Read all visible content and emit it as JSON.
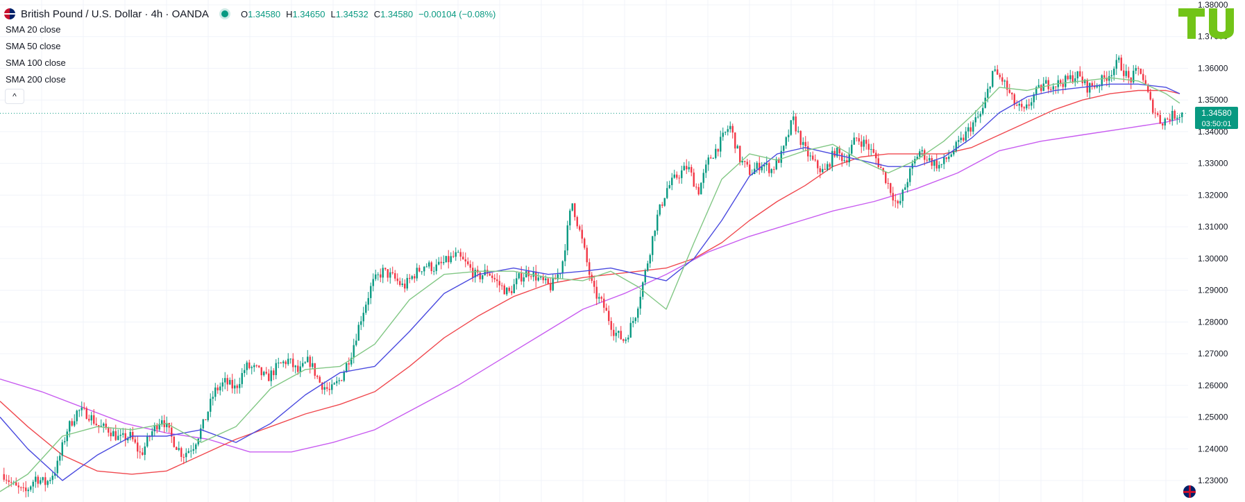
{
  "header": {
    "title": "British Pound / U.S. Dollar · 4h · OANDA",
    "ohlc": {
      "o_label": "O",
      "o": "1.34580",
      "h_label": "H",
      "h": "1.34650",
      "l_label": "L",
      "l": "1.34532",
      "c_label": "C",
      "c": "1.34580",
      "change": "−0.00104 (−0.08%)"
    }
  },
  "indicators": [
    {
      "name": "SMA",
      "params": "20 close"
    },
    {
      "name": "SMA",
      "params": "50 close"
    },
    {
      "name": "SMA",
      "params": "100 close"
    },
    {
      "name": "SMA",
      "params": "200 close"
    }
  ],
  "collapse_symbol": "^",
  "price_tag": {
    "price": "1.34580",
    "countdown": "03:50:01"
  },
  "logo_text": "TU",
  "colors": {
    "up": "#089981",
    "down": "#f23645",
    "sma20": "#81c784",
    "sma50": "#4a4adf",
    "sma100": "#f0484e",
    "sma200": "#c85cf0",
    "logo": "#72c418",
    "grid": "#f0f3fa"
  },
  "chart_data": {
    "type": "candlestick",
    "symbol": "GBPUSD",
    "timeframe": "4h",
    "y_axis": {
      "ticks": [
        "1.38000",
        "1.37000",
        "1.36000",
        "1.35000",
        "1.34000",
        "1.33000",
        "1.32000",
        "1.31000",
        "1.30000",
        "1.29000",
        "1.28000",
        "1.27000",
        "1.26000",
        "1.25000",
        "1.24000",
        "1.23000"
      ],
      "range": [
        1.2265,
        1.3808
      ]
    },
    "price_line": 1.3458,
    "price_path": [
      1.232,
      1.228,
      1.226,
      1.231,
      1.229,
      1.234,
      1.246,
      1.252,
      1.251,
      1.247,
      1.246,
      1.243,
      1.244,
      1.238,
      1.245,
      1.25,
      1.243,
      1.238,
      1.241,
      1.248,
      1.258,
      1.261,
      1.259,
      1.266,
      1.265,
      1.262,
      1.266,
      1.268,
      1.264,
      1.268,
      1.261,
      1.258,
      1.262,
      1.27,
      1.282,
      1.292,
      1.296,
      1.294,
      1.291,
      1.295,
      1.298,
      1.297,
      1.299,
      1.301,
      1.298,
      1.294,
      1.296,
      1.292,
      1.289,
      1.294,
      1.296,
      1.293,
      1.291,
      1.297,
      1.318,
      1.305,
      1.29,
      1.285,
      1.277,
      1.274,
      1.282,
      1.296,
      1.312,
      1.322,
      1.326,
      1.329,
      1.321,
      1.331,
      1.336,
      1.342,
      1.331,
      1.327,
      1.33,
      1.328,
      1.333,
      1.344,
      1.335,
      1.33,
      1.327,
      1.334,
      1.331,
      1.338,
      1.336,
      1.331,
      1.324,
      1.316,
      1.326,
      1.334,
      1.331,
      1.329,
      1.333,
      1.337,
      1.342,
      1.346,
      1.359,
      1.356,
      1.349,
      1.346,
      1.352,
      1.355,
      1.355,
      1.356,
      1.358,
      1.354,
      1.355,
      1.358,
      1.362,
      1.356,
      1.36,
      1.349,
      1.343,
      1.345,
      1.3458
    ],
    "sma20": [
      [
        0,
        1.2265
      ],
      [
        40,
        1.232
      ],
      [
        90,
        1.244
      ],
      [
        140,
        1.247
      ],
      [
        190,
        1.246
      ],
      [
        240,
        1.248
      ],
      [
        290,
        1.242
      ],
      [
        340,
        1.247
      ],
      [
        390,
        1.259
      ],
      [
        440,
        1.265
      ],
      [
        490,
        1.266
      ],
      [
        540,
        1.273
      ],
      [
        590,
        1.287
      ],
      [
        640,
        1.295
      ],
      [
        690,
        1.296
      ],
      [
        740,
        1.296
      ],
      [
        790,
        1.294
      ],
      [
        840,
        1.293
      ],
      [
        880,
        1.296
      ],
      [
        920,
        1.291
      ],
      [
        960,
        1.284
      ],
      [
        1000,
        1.305
      ],
      [
        1040,
        1.325
      ],
      [
        1080,
        1.333
      ],
      [
        1120,
        1.331
      ],
      [
        1160,
        1.334
      ],
      [
        1200,
        1.336
      ],
      [
        1240,
        1.331
      ],
      [
        1280,
        1.327
      ],
      [
        1320,
        1.331
      ],
      [
        1360,
        1.337
      ],
      [
        1400,
        1.345
      ],
      [
        1440,
        1.354
      ],
      [
        1480,
        1.353
      ],
      [
        1520,
        1.355
      ],
      [
        1560,
        1.356
      ],
      [
        1600,
        1.357
      ],
      [
        1640,
        1.356
      ],
      [
        1680,
        1.352
      ],
      [
        1700,
        1.349
      ]
    ],
    "sma50": [
      [
        0,
        1.25
      ],
      [
        40,
        1.24
      ],
      [
        90,
        1.23
      ],
      [
        140,
        1.238
      ],
      [
        190,
        1.244
      ],
      [
        240,
        1.244
      ],
      [
        290,
        1.246
      ],
      [
        340,
        1.242
      ],
      [
        390,
        1.248
      ],
      [
        440,
        1.257
      ],
      [
        490,
        1.264
      ],
      [
        540,
        1.266
      ],
      [
        590,
        1.277
      ],
      [
        640,
        1.289
      ],
      [
        690,
        1.295
      ],
      [
        740,
        1.297
      ],
      [
        790,
        1.295
      ],
      [
        840,
        1.296
      ],
      [
        880,
        1.297
      ],
      [
        920,
        1.295
      ],
      [
        960,
        1.293
      ],
      [
        1000,
        1.3
      ],
      [
        1040,
        1.312
      ],
      [
        1080,
        1.326
      ],
      [
        1120,
        1.333
      ],
      [
        1160,
        1.335
      ],
      [
        1200,
        1.333
      ],
      [
        1240,
        1.331
      ],
      [
        1280,
        1.329
      ],
      [
        1320,
        1.329
      ],
      [
        1360,
        1.332
      ],
      [
        1400,
        1.338
      ],
      [
        1440,
        1.346
      ],
      [
        1480,
        1.351
      ],
      [
        1520,
        1.353
      ],
      [
        1560,
        1.354
      ],
      [
        1600,
        1.355
      ],
      [
        1640,
        1.355
      ],
      [
        1680,
        1.354
      ],
      [
        1700,
        1.352
      ]
    ],
    "sma100": [
      [
        0,
        1.255
      ],
      [
        40,
        1.247
      ],
      [
        90,
        1.238
      ],
      [
        140,
        1.233
      ],
      [
        190,
        1.232
      ],
      [
        240,
        1.233
      ],
      [
        290,
        1.238
      ],
      [
        340,
        1.243
      ],
      [
        390,
        1.247
      ],
      [
        440,
        1.251
      ],
      [
        490,
        1.254
      ],
      [
        540,
        1.258
      ],
      [
        590,
        1.266
      ],
      [
        640,
        1.275
      ],
      [
        690,
        1.282
      ],
      [
        740,
        1.288
      ],
      [
        790,
        1.292
      ],
      [
        840,
        1.294
      ],
      [
        880,
        1.295
      ],
      [
        920,
        1.296
      ],
      [
        960,
        1.297
      ],
      [
        1000,
        1.3
      ],
      [
        1040,
        1.305
      ],
      [
        1080,
        1.312
      ],
      [
        1120,
        1.318
      ],
      [
        1160,
        1.323
      ],
      [
        1200,
        1.329
      ],
      [
        1240,
        1.332
      ],
      [
        1280,
        1.333
      ],
      [
        1320,
        1.333
      ],
      [
        1360,
        1.333
      ],
      [
        1400,
        1.335
      ],
      [
        1440,
        1.339
      ],
      [
        1480,
        1.343
      ],
      [
        1520,
        1.347
      ],
      [
        1560,
        1.35
      ],
      [
        1600,
        1.352
      ],
      [
        1640,
        1.353
      ],
      [
        1680,
        1.353
      ],
      [
        1700,
        1.352
      ]
    ],
    "sma200": [
      [
        0,
        1.262
      ],
      [
        60,
        1.258
      ],
      [
        120,
        1.253
      ],
      [
        180,
        1.248
      ],
      [
        240,
        1.245
      ],
      [
        300,
        1.243
      ],
      [
        360,
        1.239
      ],
      [
        420,
        1.239
      ],
      [
        480,
        1.242
      ],
      [
        540,
        1.246
      ],
      [
        600,
        1.253
      ],
      [
        660,
        1.26
      ],
      [
        720,
        1.268
      ],
      [
        780,
        1.276
      ],
      [
        840,
        1.284
      ],
      [
        900,
        1.289
      ],
      [
        960,
        1.295
      ],
      [
        1020,
        1.302
      ],
      [
        1080,
        1.307
      ],
      [
        1140,
        1.311
      ],
      [
        1200,
        1.315
      ],
      [
        1260,
        1.318
      ],
      [
        1320,
        1.322
      ],
      [
        1380,
        1.327
      ],
      [
        1440,
        1.334
      ],
      [
        1500,
        1.337
      ],
      [
        1560,
        1.339
      ],
      [
        1620,
        1.341
      ],
      [
        1680,
        1.343
      ],
      [
        1700,
        1.344
      ]
    ]
  }
}
